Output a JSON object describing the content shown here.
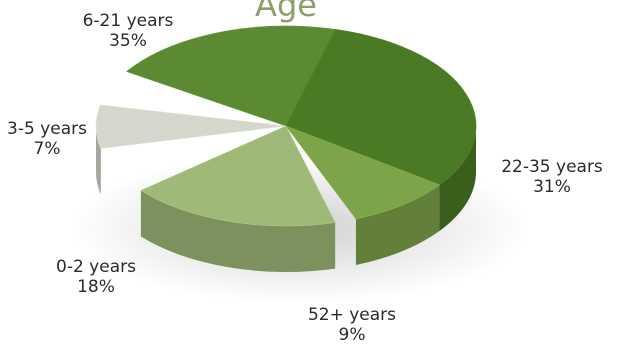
{
  "chart_data": {
    "type": "pie",
    "title": "Age",
    "slices": [
      {
        "label": "6-21 years",
        "value_label": "35%",
        "value": 35,
        "color": "#5b8a32"
      },
      {
        "label": "22-35 years",
        "value_label": "31%",
        "value": 31,
        "color": "#4a7a24"
      },
      {
        "label": "52+ years",
        "value_label": "9%",
        "value": 9,
        "color": "#7ea449"
      },
      {
        "label": "0-2 years",
        "value_label": "18%",
        "value": 18,
        "color": "#9fba78"
      },
      {
        "label": "3-5 years",
        "value_label": "7%",
        "value": 7,
        "color": "#d3d7cc"
      }
    ],
    "style": "3d"
  }
}
